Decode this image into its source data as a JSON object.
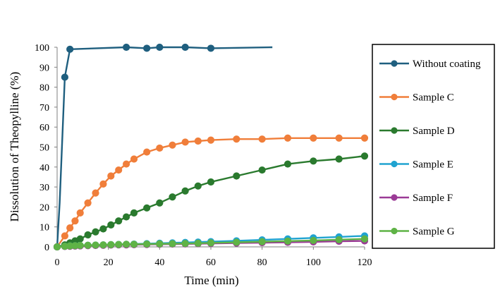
{
  "chart_data": {
    "type": "line",
    "xlabel": "Time (min)",
    "ylabel": "Dissolution of Theopylline (%)",
    "xlim": [
      0,
      120
    ],
    "ylim": [
      0,
      100
    ],
    "xticks": [
      0,
      20,
      40,
      60,
      80,
      100,
      120
    ],
    "yticks": [
      0,
      10,
      20,
      30,
      40,
      50,
      60,
      70,
      80,
      90,
      100
    ],
    "grid": false,
    "legend_position": "right",
    "series": [
      {
        "name": "Without coating",
        "color": "#1f5f7f",
        "x": [
          0,
          3,
          5,
          27,
          35,
          40,
          50,
          60
        ],
        "y": [
          0,
          85,
          99,
          100,
          99.5,
          100,
          100,
          99.5
        ],
        "line_x": [
          0,
          1,
          3,
          5,
          27,
          35,
          40,
          50,
          60,
          84
        ],
        "line_y": [
          0,
          22,
          85,
          99,
          100,
          99.5,
          100,
          100,
          99.5,
          100
        ]
      },
      {
        "name": "Sample C",
        "color": "#f07e3a",
        "x": [
          0,
          3,
          5,
          7,
          9,
          12,
          15,
          18,
          21,
          24,
          27,
          30,
          35,
          40,
          45,
          50,
          55,
          60,
          70,
          80,
          90,
          100,
          110,
          120
        ],
        "y": [
          0,
          5.5,
          9.5,
          13,
          17,
          22,
          27,
          31.5,
          35.5,
          38.5,
          41.5,
          44,
          47.5,
          49.5,
          51,
          52.5,
          53,
          53.5,
          54,
          54,
          54.5,
          54.5,
          54.5,
          54.5
        ]
      },
      {
        "name": "Sample D",
        "color": "#2a7a2e",
        "x": [
          0,
          3,
          5,
          7,
          9,
          12,
          15,
          18,
          21,
          24,
          27,
          30,
          35,
          40,
          45,
          50,
          55,
          60,
          70,
          80,
          90,
          100,
          110,
          120
        ],
        "y": [
          0,
          1,
          2,
          3,
          4,
          6,
          7.5,
          9,
          11,
          13,
          15,
          17,
          19.5,
          22,
          25,
          28,
          30.5,
          32.5,
          35.5,
          38.5,
          41.5,
          43,
          44,
          45.5
        ]
      },
      {
        "name": "Sample E",
        "color": "#20a3d0",
        "x": [
          0,
          3,
          5,
          7,
          9,
          12,
          15,
          18,
          21,
          24,
          27,
          30,
          35,
          40,
          45,
          50,
          55,
          60,
          70,
          80,
          90,
          100,
          110,
          120
        ],
        "y": [
          0,
          0.3,
          0.5,
          0.6,
          0.7,
          0.8,
          0.9,
          1,
          1.1,
          1.2,
          1.3,
          1.4,
          1.6,
          1.8,
          2,
          2.2,
          2.4,
          2.6,
          3,
          3.5,
          4,
          4.5,
          5,
          5.5
        ]
      },
      {
        "name": "Sample F",
        "color": "#9b3a96",
        "x": [
          0,
          3,
          5,
          7,
          9,
          12,
          15,
          18,
          21,
          24,
          27,
          30,
          35,
          40,
          45,
          50,
          55,
          60,
          70,
          80,
          90,
          100,
          110,
          120
        ],
        "y": [
          0,
          0.2,
          0.3,
          0.4,
          0.5,
          0.6,
          0.7,
          0.8,
          0.9,
          1,
          1,
          1.1,
          1.2,
          1.3,
          1.4,
          1.5,
          1.6,
          1.7,
          1.9,
          2.1,
          2.3,
          2.5,
          2.8,
          3
        ]
      },
      {
        "name": "Sample G",
        "color": "#5fb346",
        "x": [
          0,
          3,
          5,
          7,
          9,
          12,
          15,
          18,
          21,
          24,
          27,
          30,
          35,
          40,
          45,
          50,
          55,
          60,
          70,
          80,
          90,
          100,
          110,
          120
        ],
        "y": [
          0,
          0.3,
          0.5,
          0.6,
          0.7,
          0.8,
          0.9,
          1,
          1.1,
          1.2,
          1.3,
          1.3,
          1.4,
          1.5,
          1.6,
          1.7,
          1.8,
          2,
          2.3,
          2.6,
          2.9,
          3.2,
          3.6,
          4
        ]
      }
    ]
  }
}
